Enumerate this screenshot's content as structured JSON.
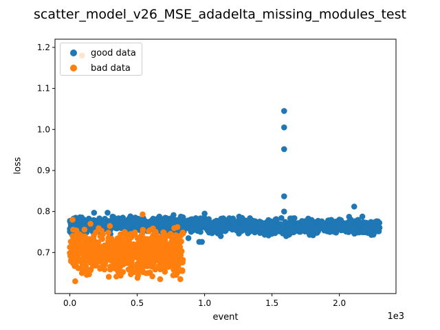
{
  "chart_data": {
    "type": "scatter",
    "title": "scatter_model_v26_MSE_adadelta_missing_modules_test",
    "xlabel": "event",
    "ylabel": "loss",
    "x_offset_label": "1e3",
    "xlim": [
      -0.11,
      2.42
    ],
    "ylim": [
      0.6,
      1.22
    ],
    "x_ticks": [
      0.0,
      0.5,
      1.0,
      1.5,
      2.0
    ],
    "x_tick_labels": [
      "0.0",
      "0.5",
      "1.0",
      "1.5",
      "2.0"
    ],
    "y_ticks": [
      0.7,
      0.8,
      0.9,
      1.0,
      1.1,
      1.2
    ],
    "y_tick_labels": [
      "0.7",
      "0.8",
      "0.9",
      "1.0",
      "1.1",
      "1.2"
    ],
    "legend_position": "upper-left",
    "series": [
      {
        "name": "good data",
        "color": "#1f77b4",
        "x_range": [
          0.0,
          2.3
        ],
        "loss_band": [
          0.74,
          0.79
        ],
        "points": [
          {
            "x": 1.59,
            "y": 1.045
          },
          {
            "x": 1.59,
            "y": 1.005
          },
          {
            "x": 1.59,
            "y": 0.952
          },
          {
            "x": 1.59,
            "y": 0.837
          },
          {
            "x": 1.59,
            "y": 0.8
          },
          {
            "x": 2.11,
            "y": 0.812
          },
          {
            "x": 0.18,
            "y": 0.797
          },
          {
            "x": 0.28,
            "y": 0.797
          },
          {
            "x": 1.0,
            "y": 0.795
          },
          {
            "x": 0.96,
            "y": 0.726
          },
          {
            "x": 0.98,
            "y": 0.726
          },
          {
            "x": 0.88,
            "y": 0.735
          },
          {
            "x": 1.12,
            "y": 0.74
          }
        ]
      },
      {
        "name": "bad data",
        "color": "#ff7f0e",
        "x_range": [
          0.0,
          0.84
        ],
        "loss_band": [
          0.635,
          0.77
        ],
        "points": [
          {
            "x": 0.09,
            "y": 1.18
          },
          {
            "x": 0.54,
            "y": 0.793
          },
          {
            "x": 0.04,
            "y": 0.63
          },
          {
            "x": 0.82,
            "y": 0.635
          },
          {
            "x": 0.02,
            "y": 0.78
          }
        ]
      }
    ]
  }
}
